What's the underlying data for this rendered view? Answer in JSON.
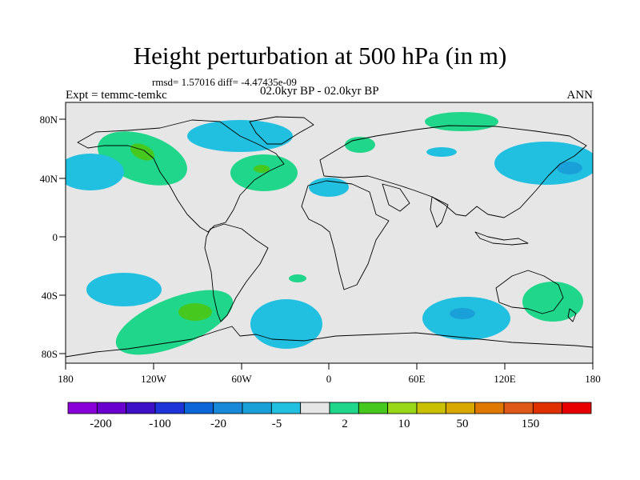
{
  "title": "Height perturbation at 500 hPa (in m)",
  "rmsd_line": "rmsd= 1.57016 diff= -4.47435e-09",
  "period": "02.0kyr BP - 02.0kyr BP",
  "experiment": "Expt = temmc-temkc",
  "season": "ANN",
  "axes": {
    "lon_ticks": [
      "180",
      "120W",
      "60W",
      "0",
      "60E",
      "120E",
      "180"
    ],
    "lat_ticks": [
      "80N",
      "40N",
      "0",
      "40S",
      "80S"
    ]
  },
  "colorbar": {
    "colors": [
      "#8a00d8",
      "#6a00d0",
      "#3e10c8",
      "#1e34d8",
      "#0c66d8",
      "#1888d8",
      "#1aa0d8",
      "#22c0e0",
      "#e6e6e6",
      "#20d68a",
      "#46c81e",
      "#98d818",
      "#c8c000",
      "#d8a800",
      "#e07800",
      "#e05818",
      "#e03000",
      "#e80000"
    ],
    "labels": [
      "-200",
      "-100",
      "-20",
      "-5",
      "2",
      "10",
      "50",
      "150"
    ]
  },
  "palette": {
    "ocean_bg": "#e6e6e6",
    "pos_light": "#20d68a",
    "pos_strong": "#46c81e",
    "neg_light": "#22c0e0",
    "neg_strong": "#1aa0d8"
  }
}
